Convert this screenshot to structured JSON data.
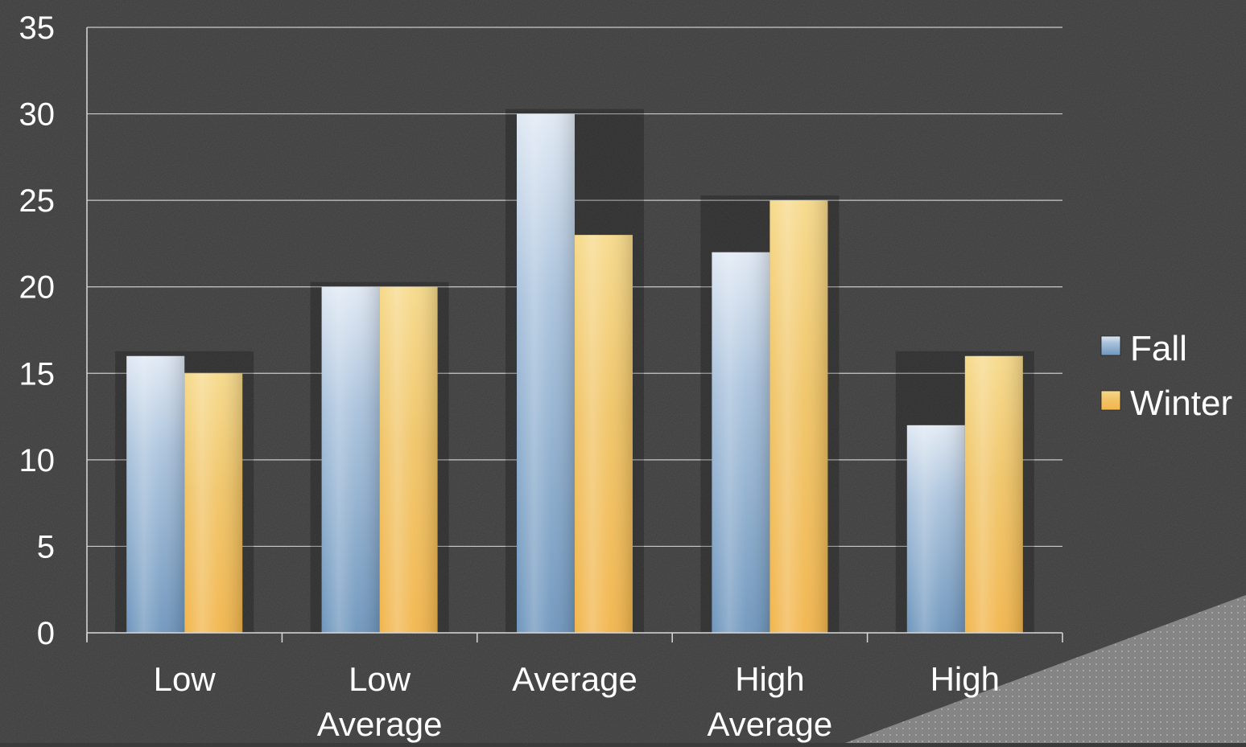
{
  "chart_data": {
    "type": "bar",
    "title": "",
    "xlabel": "",
    "ylabel": "",
    "categories": [
      [
        "Low"
      ],
      [
        "Low",
        "Average"
      ],
      [
        "Average"
      ],
      [
        "High",
        "Average"
      ],
      [
        "High"
      ]
    ],
    "series": [
      {
        "name": "Fall",
        "values": [
          16,
          20,
          30,
          22,
          12
        ],
        "color": "#7fa3c6"
      },
      {
        "name": "Winter",
        "values": [
          15,
          20,
          23,
          25,
          16
        ],
        "color": "#f1c35a"
      }
    ],
    "ylim": [
      0,
      35
    ],
    "yticks": [
      0,
      5,
      10,
      15,
      20,
      25,
      30,
      35
    ],
    "grid": true,
    "legend_position": "right",
    "colors": {
      "background": "#3b3b3b",
      "text": "#ffffff",
      "grid": "#d9d9d9"
    }
  }
}
